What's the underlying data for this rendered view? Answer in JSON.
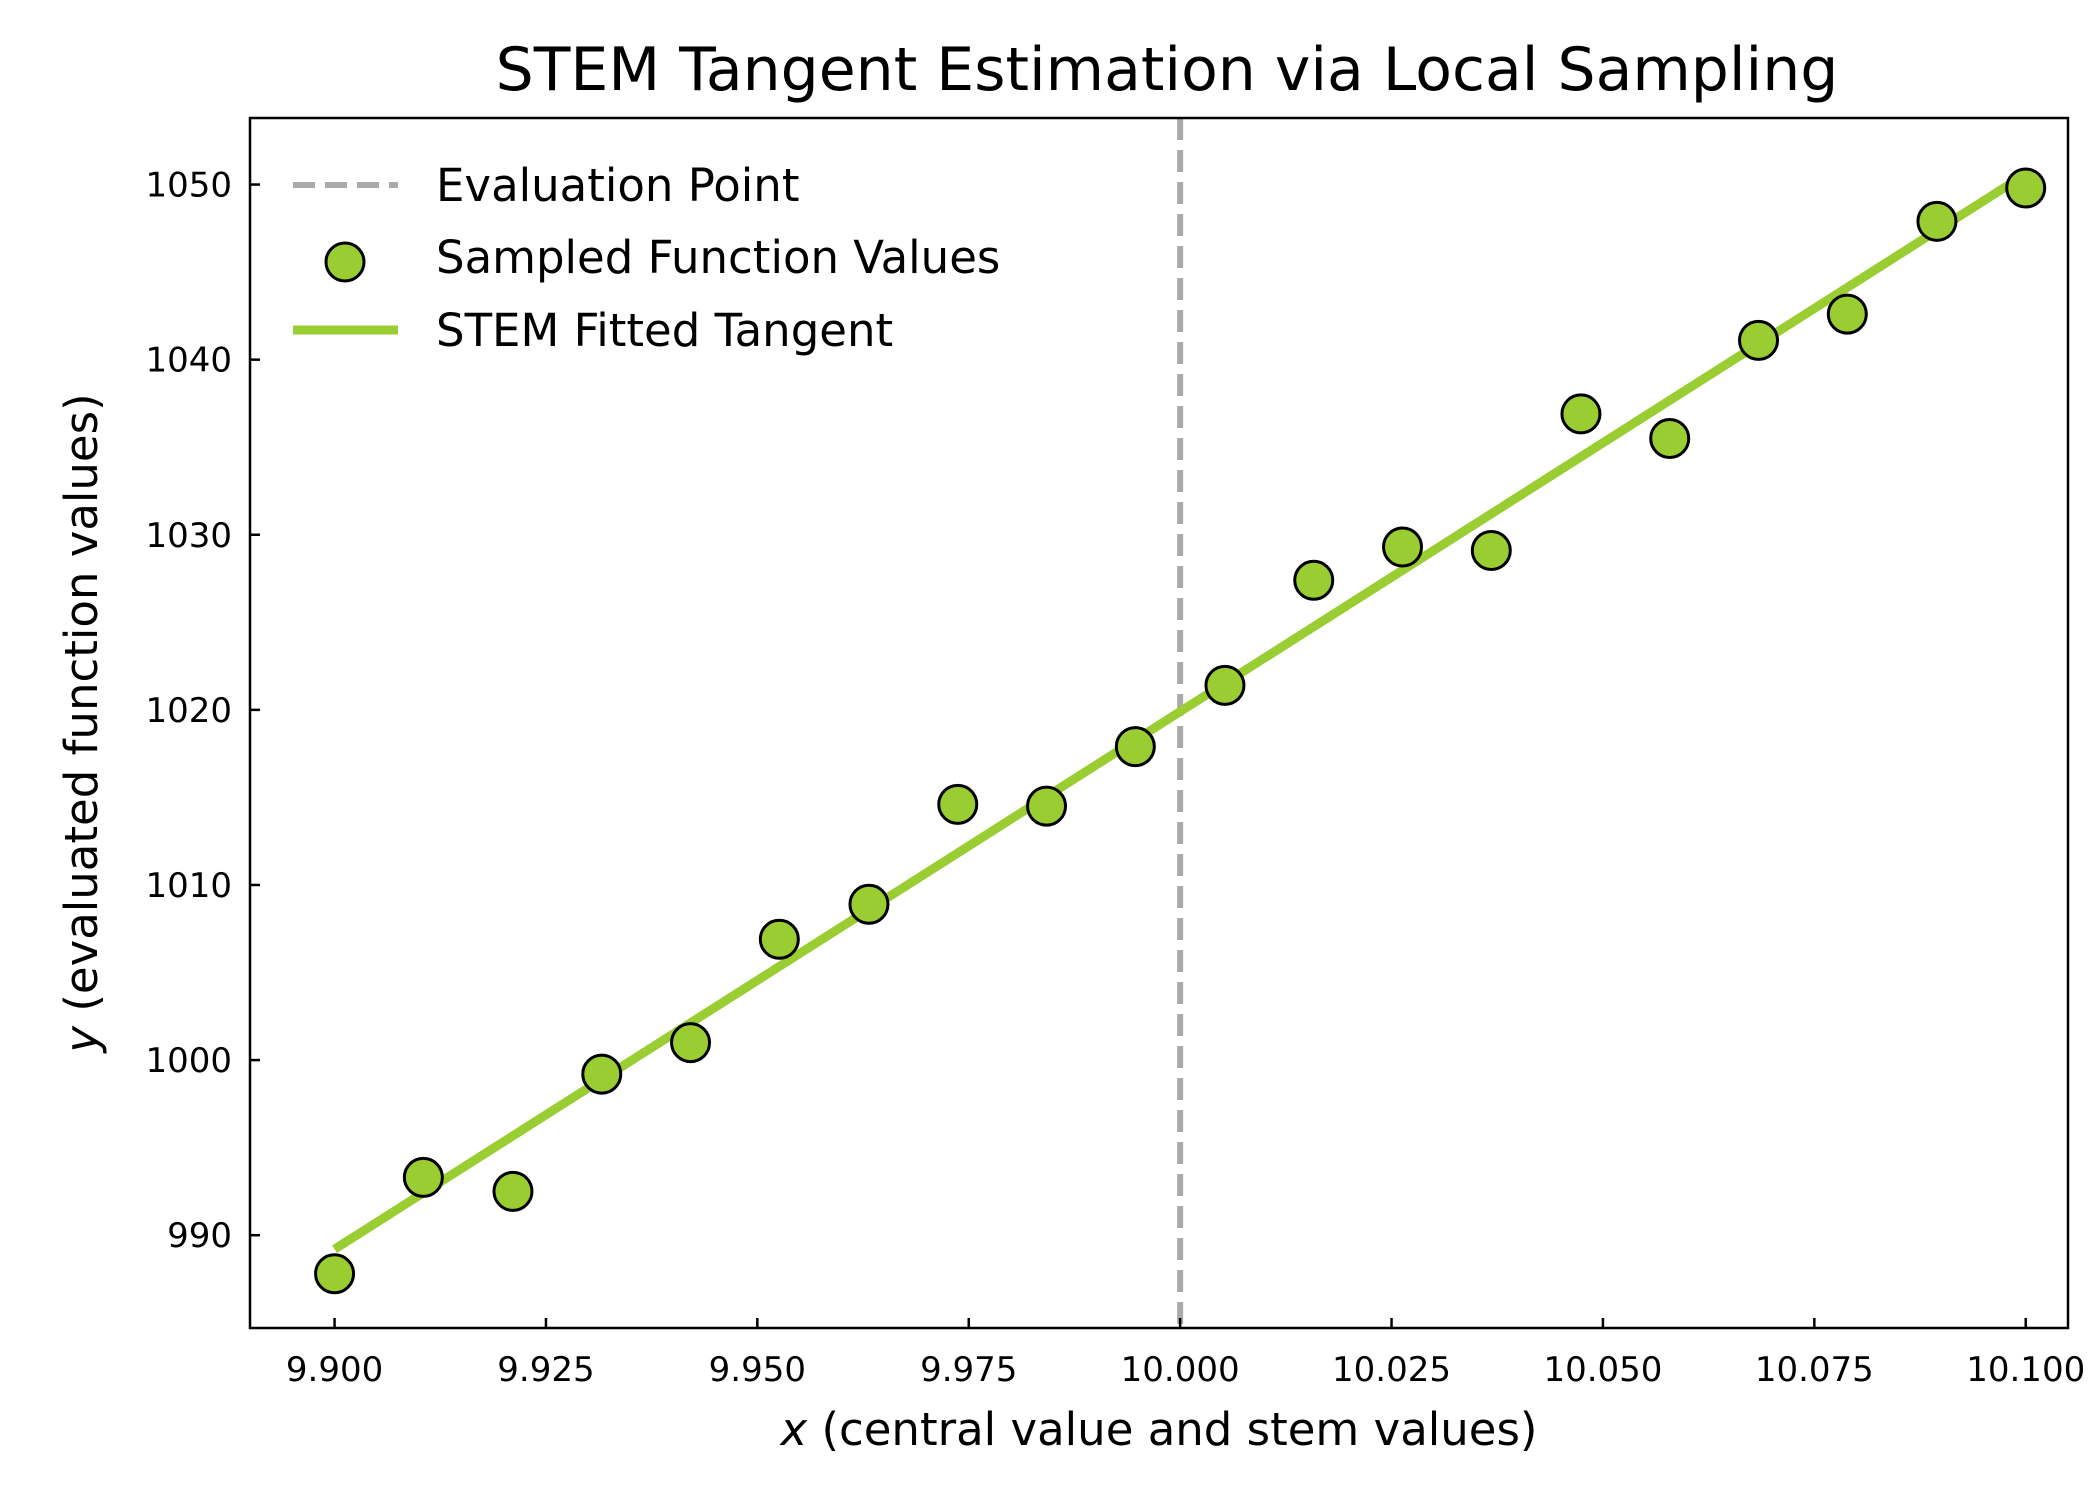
{
  "chart_data": {
    "type": "scatter",
    "title": "STEM Tangent Estimation via Local Sampling",
    "xlabel_var": "x",
    "xlabel_rest": " (central value and stem values)",
    "ylabel_var": "y",
    "ylabel_rest": " (evaluated function values)",
    "xlim": [
      9.89,
      10.105
    ],
    "ylim": [
      984.7,
      1053.8
    ],
    "xticks": [
      9.9,
      9.925,
      9.95,
      9.975,
      10.0,
      10.025,
      10.05,
      10.075,
      10.1
    ],
    "xtick_labels": [
      "9.900",
      "9.925",
      "9.950",
      "9.975",
      "10.000",
      "10.025",
      "10.050",
      "10.075",
      "10.100"
    ],
    "yticks": [
      990,
      1000,
      1010,
      1020,
      1030,
      1040,
      1050
    ],
    "ytick_labels": [
      "990",
      "1000",
      "1010",
      "1020",
      "1030",
      "1040",
      "1050"
    ],
    "grid": false,
    "legend_position": "top-left",
    "colors": {
      "points": "#9acd32",
      "line": "#9acd32",
      "vline": "#aaaaaa",
      "edge": "#000000"
    },
    "series": [
      {
        "name": "Evaluation Point",
        "kind": "vline",
        "x": 10.0
      },
      {
        "name": "Sampled Function Values",
        "kind": "scatter",
        "x": [
          9.9,
          9.9105,
          9.9211,
          9.9316,
          9.9421,
          9.9526,
          9.9632,
          9.9737,
          9.9842,
          9.9947,
          10.0053,
          10.0158,
          10.0263,
          10.0368,
          10.0474,
          10.0579,
          10.0684,
          10.0789,
          10.0895,
          10.1
        ],
        "y": [
          987.8,
          993.3,
          992.5,
          999.2,
          1001.0,
          1006.9,
          1008.9,
          1014.6,
          1014.5,
          1017.9,
          1021.4,
          1027.4,
          1029.3,
          1029.1,
          1036.9,
          1035.5,
          1041.1,
          1042.6,
          1047.9,
          1049.8
        ]
      },
      {
        "name": "STEM Fitted Tangent",
        "kind": "line",
        "x": [
          9.9,
          10.1
        ],
        "y": [
          989.2,
          1050.6
        ]
      }
    ]
  }
}
